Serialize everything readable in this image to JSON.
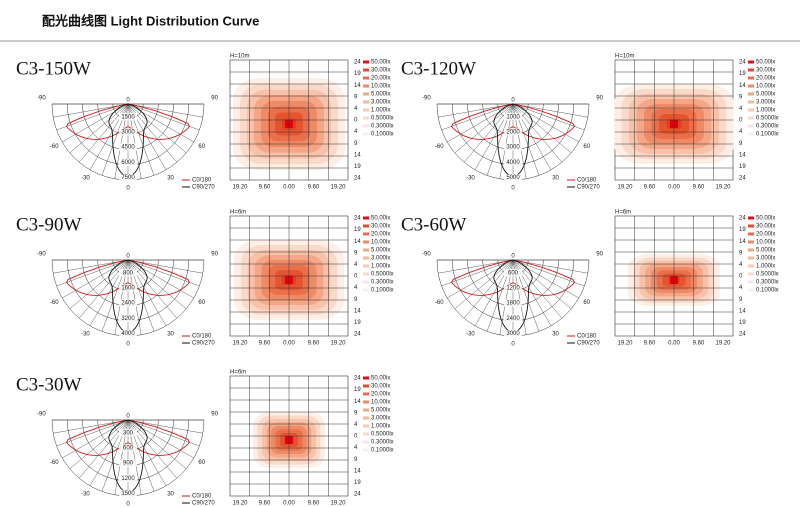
{
  "header": {
    "title": "配光曲线图 Light Distribution Curve"
  },
  "common": {
    "angle_labels": [
      "-90",
      "90",
      "-60",
      "60",
      "-30",
      "30",
      "0",
      "0"
    ],
    "curve_legend": [
      "C0/180",
      "C90/270"
    ],
    "y_ticks": [
      "24",
      "19",
      "14",
      "9",
      "4",
      "0",
      "4",
      "9",
      "14",
      "19",
      "24"
    ],
    "x_ticks": [
      "19.20",
      "9.60",
      "0.00",
      "9.60",
      "19.20"
    ],
    "lux_legend": [
      "50.00lx",
      "30.00lx",
      "20.00lx",
      "10.00lx",
      "5.000lx",
      "3.000lx",
      "1.000lx",
      "0.5000lx",
      "0.3000lx",
      "0.1000lx"
    ]
  },
  "panels": [
    {
      "title": "C3-150W",
      "height": "H=10m",
      "radial_labels": [
        "1500",
        "3000",
        "4500",
        "6000",
        "7500"
      ]
    },
    {
      "title": "C3-120W",
      "height": "H=10m",
      "radial_labels": [
        "1000",
        "2000",
        "3000",
        "4000",
        "5000"
      ]
    },
    {
      "title": "C3-90W",
      "height": "H=6m",
      "radial_labels": [
        "800",
        "1600",
        "2400",
        "3200",
        "4000"
      ]
    },
    {
      "title": "C3-60W",
      "height": "H=6m",
      "radial_labels": [
        "600",
        "1200",
        "1800",
        "2400",
        "3000"
      ]
    },
    {
      "title": "C3-30W",
      "height": "H=6m",
      "radial_labels": [
        "300",
        "600",
        "900",
        "1200",
        "1500"
      ]
    }
  ]
}
